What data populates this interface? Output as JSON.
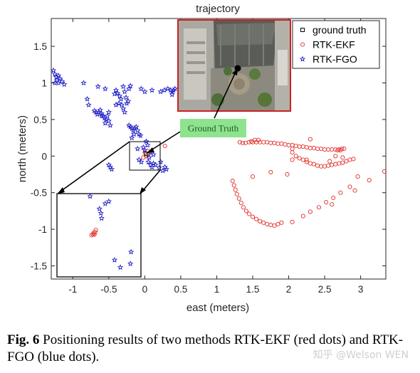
{
  "chart_data": {
    "type": "scatter",
    "title": "trajectory",
    "xlabel": "east (meters)",
    "ylabel": "north (meters)",
    "xlim": [
      -1.3,
      3.35
    ],
    "ylim": [
      -1.68,
      1.88
    ],
    "xticks": [
      -1,
      -0.5,
      0,
      0.5,
      1,
      1.5,
      2,
      2.5,
      3
    ],
    "xtick_labels": [
      "-1",
      "-0.5",
      "0",
      "0.5",
      "1",
      "1.5",
      "2",
      "2.5",
      "3"
    ],
    "yticks": [
      -1.5,
      -1,
      -0.5,
      0,
      0.5,
      1,
      1.5
    ],
    "ytick_labels": [
      "-1.5",
      "-1",
      "-0.5",
      "0",
      "0.5",
      "1",
      "1.5"
    ],
    "grid": false,
    "legend_position": "top-right",
    "series": [
      {
        "name": "ground truth",
        "marker": "square",
        "color": "#000000",
        "points": [
          [
            0.02,
            0.03
          ]
        ]
      },
      {
        "name": "RTK-EKF",
        "marker": "circle",
        "color": "#e0302a",
        "points": [
          [
            0.0,
            0.05
          ],
          [
            0.02,
            0.0
          ],
          [
            0.04,
            0.07
          ],
          [
            -0.02,
            -0.02
          ],
          [
            0.05,
            0.02
          ],
          [
            0.28,
            0.14
          ],
          [
            1.32,
            0.19
          ],
          [
            1.36,
            0.18
          ],
          [
            1.4,
            0.18
          ],
          [
            1.45,
            0.19
          ],
          [
            1.5,
            0.19
          ],
          [
            1.55,
            0.19
          ],
          [
            1.6,
            0.19
          ],
          [
            1.65,
            0.19
          ],
          [
            1.7,
            0.19
          ],
          [
            1.75,
            0.18
          ],
          [
            1.8,
            0.18
          ],
          [
            1.85,
            0.17
          ],
          [
            1.9,
            0.17
          ],
          [
            1.95,
            0.16
          ],
          [
            2.0,
            0.15
          ],
          [
            2.05,
            0.15
          ],
          [
            2.1,
            0.14
          ],
          [
            2.15,
            0.13
          ],
          [
            2.2,
            0.13
          ],
          [
            2.25,
            0.12
          ],
          [
            2.3,
            0.11
          ],
          [
            2.35,
            0.11
          ],
          [
            2.4,
            0.1
          ],
          [
            2.45,
            0.1
          ],
          [
            2.5,
            0.09
          ],
          [
            2.55,
            0.09
          ],
          [
            2.6,
            0.09
          ],
          [
            2.65,
            0.09
          ],
          [
            2.7,
            0.09
          ],
          [
            2.74,
            0.1
          ],
          [
            2.77,
            0.1
          ],
          [
            2.72,
            0.08
          ],
          [
            2.68,
            0.08
          ],
          [
            1.53,
            0.22
          ],
          [
            1.48,
            0.2
          ],
          [
            1.58,
            0.22
          ],
          [
            2.05,
            0.1
          ],
          [
            2.3,
            0.23
          ],
          [
            2.05,
            0.05
          ],
          [
            2.1,
            0.0
          ],
          [
            2.15,
            -0.03
          ],
          [
            2.2,
            -0.05
          ],
          [
            2.25,
            -0.08
          ],
          [
            2.3,
            -0.1
          ],
          [
            2.35,
            -0.11
          ],
          [
            2.4,
            -0.13
          ],
          [
            2.45,
            -0.14
          ],
          [
            2.5,
            -0.14
          ],
          [
            2.55,
            -0.13
          ],
          [
            2.6,
            -0.12
          ],
          [
            2.65,
            -0.11
          ],
          [
            2.7,
            -0.1
          ],
          [
            2.75,
            -0.09
          ],
          [
            2.8,
            -0.07
          ],
          [
            2.85,
            -0.05
          ],
          [
            2.9,
            -0.04
          ],
          [
            2.05,
            -0.05
          ],
          [
            2.25,
            -0.05
          ],
          [
            2.57,
            -0.07
          ],
          [
            2.65,
            0.0
          ],
          [
            2.75,
            -0.02
          ],
          [
            1.22,
            -0.34
          ],
          [
            1.24,
            -0.4
          ],
          [
            1.26,
            -0.46
          ],
          [
            1.28,
            -0.52
          ],
          [
            1.31,
            -0.58
          ],
          [
            1.34,
            -0.64
          ],
          [
            1.37,
            -0.7
          ],
          [
            1.41,
            -0.75
          ],
          [
            1.45,
            -0.79
          ],
          [
            1.5,
            -0.83
          ],
          [
            1.55,
            -0.86
          ],
          [
            1.6,
            -0.89
          ],
          [
            1.65,
            -0.91
          ],
          [
            1.7,
            -0.93
          ],
          [
            1.75,
            -0.94
          ],
          [
            1.8,
            -0.95
          ],
          [
            1.85,
            -0.93
          ],
          [
            1.9,
            -0.91
          ],
          [
            1.5,
            -0.28
          ],
          [
            1.75,
            -0.22
          ],
          [
            1.98,
            -0.25
          ],
          [
            2.05,
            -0.9
          ],
          [
            2.2,
            -0.82
          ],
          [
            2.3,
            -0.76
          ],
          [
            2.42,
            -0.7
          ],
          [
            2.52,
            -0.63
          ],
          [
            2.62,
            -0.57
          ],
          [
            2.72,
            -0.5
          ],
          [
            2.85,
            -0.42
          ],
          [
            2.96,
            -0.28
          ],
          [
            3.12,
            -0.33
          ],
          [
            3.33,
            -0.21
          ],
          [
            2.92,
            -0.47
          ],
          [
            2.6,
            -0.66
          ]
        ]
      },
      {
        "name": "RTK-FGO",
        "marker": "star",
        "color": "#1f1fc8",
        "points": [
          [
            -1.27,
            1.17
          ],
          [
            -1.25,
            1.12
          ],
          [
            -1.23,
            1.08
          ],
          [
            -1.22,
            1.04
          ],
          [
            -1.2,
            1.1
          ],
          [
            -1.18,
            1.06
          ],
          [
            -1.2,
            1.0
          ],
          [
            -1.15,
            1.02
          ],
          [
            -1.12,
            0.98
          ],
          [
            -1.25,
            1.0
          ],
          [
            -0.85,
            1.0
          ],
          [
            -0.8,
            0.78
          ],
          [
            -0.78,
            0.7
          ],
          [
            -0.65,
            0.95
          ],
          [
            -0.6,
            0.55
          ],
          [
            -0.55,
            0.92
          ],
          [
            -0.7,
            0.62
          ],
          [
            -0.68,
            0.6
          ],
          [
            -0.66,
            0.57
          ],
          [
            -0.64,
            0.6
          ],
          [
            -0.62,
            0.63
          ],
          [
            -0.6,
            0.58
          ],
          [
            -0.58,
            0.55
          ],
          [
            -0.56,
            0.52
          ],
          [
            -0.54,
            0.5
          ],
          [
            -0.52,
            0.55
          ],
          [
            -0.5,
            0.6
          ],
          [
            -0.55,
            0.45
          ],
          [
            -0.5,
            0.48
          ],
          [
            -0.48,
            0.42
          ],
          [
            -0.42,
            0.85
          ],
          [
            -0.4,
            0.9
          ],
          [
            -0.38,
            0.86
          ],
          [
            -0.35,
            0.82
          ],
          [
            -0.33,
            0.78
          ],
          [
            -0.3,
            0.95
          ],
          [
            -0.28,
            0.88
          ],
          [
            -0.26,
            0.8
          ],
          [
            -0.32,
            0.7
          ],
          [
            -0.3,
            0.65
          ],
          [
            -0.28,
            0.6
          ],
          [
            -0.25,
            0.72
          ],
          [
            -0.22,
            0.92
          ],
          [
            -0.2,
            0.96
          ],
          [
            -0.23,
            0.75
          ],
          [
            -0.36,
            0.72
          ],
          [
            -0.4,
            0.7
          ],
          [
            -0.2,
            0.4
          ],
          [
            -0.18,
            0.38
          ],
          [
            -0.16,
            0.35
          ],
          [
            -0.14,
            0.38
          ],
          [
            -0.12,
            0.4
          ],
          [
            -0.1,
            0.35
          ],
          [
            -0.08,
            0.3
          ],
          [
            -0.06,
            0.28
          ],
          [
            -0.15,
            0.3
          ],
          [
            -0.18,
            0.25
          ],
          [
            -0.22,
            0.42
          ],
          [
            -0.05,
            0.92
          ],
          [
            0.0,
            0.88
          ],
          [
            0.1,
            0.9
          ],
          [
            0.22,
            0.88
          ],
          [
            0.27,
            0.9
          ],
          [
            0.32,
            0.92
          ],
          [
            0.36,
            0.9
          ],
          [
            0.38,
            0.88
          ],
          [
            0.4,
            0.9
          ],
          [
            0.42,
            0.92
          ],
          [
            0.38,
            0.84
          ],
          [
            -0.5,
            -0.12
          ],
          [
            -0.48,
            -0.15
          ],
          [
            -0.46,
            -0.18
          ],
          [
            -0.1,
            0.1
          ],
          [
            -0.08,
            -0.05
          ],
          [
            -0.05,
            -0.08
          ],
          [
            0.05,
            -0.08
          ],
          [
            0.08,
            -0.12
          ],
          [
            0.1,
            -0.15
          ],
          [
            0.12,
            -0.1
          ],
          [
            0.15,
            -0.12
          ],
          [
            0.2,
            -0.16
          ],
          [
            0.25,
            -0.2
          ],
          [
            0.28,
            -0.15
          ],
          [
            0.3,
            -0.18
          ],
          [
            0.0,
            0.08
          ],
          [
            -0.02,
            0.12
          ],
          [
            0.04,
            0.15
          ],
          [
            0.02,
            0.2
          ],
          [
            0.06,
            -0.02
          ],
          [
            0.08,
            0.05
          ],
          [
            0.22,
            -0.08
          ],
          [
            0.12,
            0.02
          ]
        ]
      }
    ],
    "inset_points": {
      "RTK-EKF": [
        [
          -0.72,
          -1.07
        ],
        [
          -0.74,
          -1.08
        ],
        [
          -0.71,
          -1.05
        ],
        [
          -0.69,
          -1.04
        ],
        [
          -0.7,
          -1.07
        ],
        [
          -0.68,
          -1.01
        ]
      ],
      "RTK-FGO": [
        [
          -0.76,
          -0.55
        ],
        [
          -0.63,
          -0.72
        ],
        [
          -0.55,
          -0.65
        ],
        [
          -0.61,
          -0.78
        ],
        [
          -0.6,
          -0.85
        ],
        [
          -0.5,
          -0.62
        ],
        [
          -0.42,
          -1.42
        ],
        [
          -0.34,
          -1.52
        ],
        [
          -0.19,
          -1.31
        ],
        [
          -0.2,
          -1.47
        ]
      ]
    },
    "annotation": "Ground Truth"
  },
  "caption": {
    "label": "Fig. 6",
    "text": " Positioning results of two methods RTK-EKF (red dots) and RTK-FGO (blue dots)."
  },
  "watermark": "知乎 @Welson WEN",
  "colors": {
    "ekf": "#e0302a",
    "fgo": "#1f1fc8",
    "ground_truth_box": "#cc2222",
    "ground_truth_label_bg": "#8fe38f"
  }
}
